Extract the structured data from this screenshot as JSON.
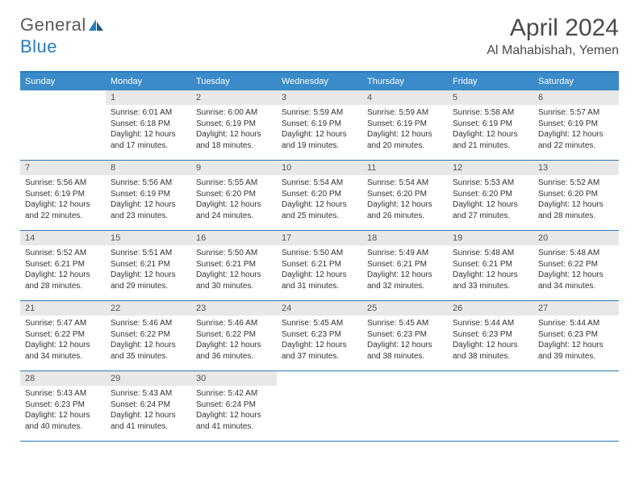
{
  "logo": {
    "text1": "General",
    "text2": "Blue"
  },
  "title": "April 2024",
  "location": "Al Mahabishah, Yemen",
  "colors": {
    "header_bg": "#3b8bc9",
    "border": "#2a7ab8",
    "daynum_bg": "#e8e8e8",
    "text": "#333333",
    "title": "#4a4a4a"
  },
  "weekdays": [
    "Sunday",
    "Monday",
    "Tuesday",
    "Wednesday",
    "Thursday",
    "Friday",
    "Saturday"
  ],
  "weeks": [
    [
      {
        "n": "",
        "sr": "",
        "ss": "",
        "dl": ""
      },
      {
        "n": "1",
        "sr": "Sunrise: 6:01 AM",
        "ss": "Sunset: 6:18 PM",
        "dl": "Daylight: 12 hours and 17 minutes."
      },
      {
        "n": "2",
        "sr": "Sunrise: 6:00 AM",
        "ss": "Sunset: 6:19 PM",
        "dl": "Daylight: 12 hours and 18 minutes."
      },
      {
        "n": "3",
        "sr": "Sunrise: 5:59 AM",
        "ss": "Sunset: 6:19 PM",
        "dl": "Daylight: 12 hours and 19 minutes."
      },
      {
        "n": "4",
        "sr": "Sunrise: 5:59 AM",
        "ss": "Sunset: 6:19 PM",
        "dl": "Daylight: 12 hours and 20 minutes."
      },
      {
        "n": "5",
        "sr": "Sunrise: 5:58 AM",
        "ss": "Sunset: 6:19 PM",
        "dl": "Daylight: 12 hours and 21 minutes."
      },
      {
        "n": "6",
        "sr": "Sunrise: 5:57 AM",
        "ss": "Sunset: 6:19 PM",
        "dl": "Daylight: 12 hours and 22 minutes."
      }
    ],
    [
      {
        "n": "7",
        "sr": "Sunrise: 5:56 AM",
        "ss": "Sunset: 6:19 PM",
        "dl": "Daylight: 12 hours and 22 minutes."
      },
      {
        "n": "8",
        "sr": "Sunrise: 5:56 AM",
        "ss": "Sunset: 6:19 PM",
        "dl": "Daylight: 12 hours and 23 minutes."
      },
      {
        "n": "9",
        "sr": "Sunrise: 5:55 AM",
        "ss": "Sunset: 6:20 PM",
        "dl": "Daylight: 12 hours and 24 minutes."
      },
      {
        "n": "10",
        "sr": "Sunrise: 5:54 AM",
        "ss": "Sunset: 6:20 PM",
        "dl": "Daylight: 12 hours and 25 minutes."
      },
      {
        "n": "11",
        "sr": "Sunrise: 5:54 AM",
        "ss": "Sunset: 6:20 PM",
        "dl": "Daylight: 12 hours and 26 minutes."
      },
      {
        "n": "12",
        "sr": "Sunrise: 5:53 AM",
        "ss": "Sunset: 6:20 PM",
        "dl": "Daylight: 12 hours and 27 minutes."
      },
      {
        "n": "13",
        "sr": "Sunrise: 5:52 AM",
        "ss": "Sunset: 6:20 PM",
        "dl": "Daylight: 12 hours and 28 minutes."
      }
    ],
    [
      {
        "n": "14",
        "sr": "Sunrise: 5:52 AM",
        "ss": "Sunset: 6:21 PM",
        "dl": "Daylight: 12 hours and 28 minutes."
      },
      {
        "n": "15",
        "sr": "Sunrise: 5:51 AM",
        "ss": "Sunset: 6:21 PM",
        "dl": "Daylight: 12 hours and 29 minutes."
      },
      {
        "n": "16",
        "sr": "Sunrise: 5:50 AM",
        "ss": "Sunset: 6:21 PM",
        "dl": "Daylight: 12 hours and 30 minutes."
      },
      {
        "n": "17",
        "sr": "Sunrise: 5:50 AM",
        "ss": "Sunset: 6:21 PM",
        "dl": "Daylight: 12 hours and 31 minutes."
      },
      {
        "n": "18",
        "sr": "Sunrise: 5:49 AM",
        "ss": "Sunset: 6:21 PM",
        "dl": "Daylight: 12 hours and 32 minutes."
      },
      {
        "n": "19",
        "sr": "Sunrise: 5:48 AM",
        "ss": "Sunset: 6:21 PM",
        "dl": "Daylight: 12 hours and 33 minutes."
      },
      {
        "n": "20",
        "sr": "Sunrise: 5:48 AM",
        "ss": "Sunset: 6:22 PM",
        "dl": "Daylight: 12 hours and 34 minutes."
      }
    ],
    [
      {
        "n": "21",
        "sr": "Sunrise: 5:47 AM",
        "ss": "Sunset: 6:22 PM",
        "dl": "Daylight: 12 hours and 34 minutes."
      },
      {
        "n": "22",
        "sr": "Sunrise: 5:46 AM",
        "ss": "Sunset: 6:22 PM",
        "dl": "Daylight: 12 hours and 35 minutes."
      },
      {
        "n": "23",
        "sr": "Sunrise: 5:46 AM",
        "ss": "Sunset: 6:22 PM",
        "dl": "Daylight: 12 hours and 36 minutes."
      },
      {
        "n": "24",
        "sr": "Sunrise: 5:45 AM",
        "ss": "Sunset: 6:23 PM",
        "dl": "Daylight: 12 hours and 37 minutes."
      },
      {
        "n": "25",
        "sr": "Sunrise: 5:45 AM",
        "ss": "Sunset: 6:23 PM",
        "dl": "Daylight: 12 hours and 38 minutes."
      },
      {
        "n": "26",
        "sr": "Sunrise: 5:44 AM",
        "ss": "Sunset: 6:23 PM",
        "dl": "Daylight: 12 hours and 38 minutes."
      },
      {
        "n": "27",
        "sr": "Sunrise: 5:44 AM",
        "ss": "Sunset: 6:23 PM",
        "dl": "Daylight: 12 hours and 39 minutes."
      }
    ],
    [
      {
        "n": "28",
        "sr": "Sunrise: 5:43 AM",
        "ss": "Sunset: 6:23 PM",
        "dl": "Daylight: 12 hours and 40 minutes."
      },
      {
        "n": "29",
        "sr": "Sunrise: 5:43 AM",
        "ss": "Sunset: 6:24 PM",
        "dl": "Daylight: 12 hours and 41 minutes."
      },
      {
        "n": "30",
        "sr": "Sunrise: 5:42 AM",
        "ss": "Sunset: 6:24 PM",
        "dl": "Daylight: 12 hours and 41 minutes."
      },
      {
        "n": "",
        "sr": "",
        "ss": "",
        "dl": ""
      },
      {
        "n": "",
        "sr": "",
        "ss": "",
        "dl": ""
      },
      {
        "n": "",
        "sr": "",
        "ss": "",
        "dl": ""
      },
      {
        "n": "",
        "sr": "",
        "ss": "",
        "dl": ""
      }
    ]
  ]
}
